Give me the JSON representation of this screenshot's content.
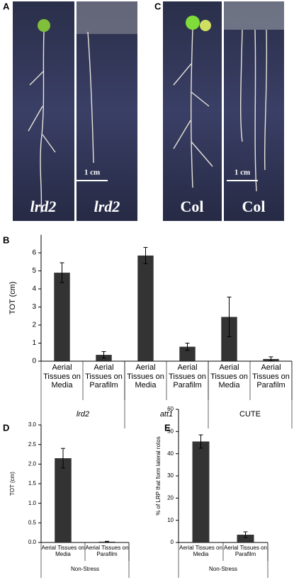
{
  "panels": [
    "A",
    "C"
  ],
  "photos": [
    {
      "label": "lrd2",
      "scale": "1 cm"
    },
    {
      "label": "Col",
      "scale": "1 cm"
    }
  ],
  "chart_data": [
    {
      "type": "bar",
      "panel": "B",
      "y_label": "TOT (cm)",
      "color": "#333333",
      "categories": [
        "Aerial Tissues on Media",
        "Aerial Tissues on Parafilm",
        "Aerial Tissues on Media",
        "Aerial Tissues on Parafilm",
        "Aerial Tissues on Media",
        "Aerial Tissues on Parafilm"
      ],
      "values": [
        4.9,
        0.35,
        5.85,
        0.8,
        2.45,
        0.12
      ],
      "errors": [
        0.55,
        0.18,
        0.45,
        0.2,
        1.1,
        0.12
      ],
      "groups": [
        {
          "label": "lrd2",
          "span": 2,
          "italic": true
        },
        {
          "label": "att1",
          "span": 2,
          "italic": true
        },
        {
          "label": "CUTE",
          "span": 2,
          "italic": false
        }
      ],
      "ylim": [
        0,
        7
      ],
      "yticks": [
        0,
        1,
        2,
        3,
        4,
        5,
        6
      ]
    },
    {
      "type": "bar",
      "panel": "D",
      "y_label": "TOT (cm)",
      "color": "#333333",
      "categories": [
        "Aerial Tissues on Media",
        "Aerial Tissues on Parafilm"
      ],
      "values": [
        2.15,
        0.02
      ],
      "errors": [
        0.25,
        0.01
      ],
      "groups": [
        {
          "label": "Non-Stress",
          "span": 2,
          "italic": false
        }
      ],
      "ylim": [
        0,
        3
      ],
      "yticks": [
        {
          "value": 0,
          "label": "0.0"
        },
        {
          "value": 0.5,
          "label": "0.5"
        },
        {
          "value": 1,
          "label": "1.0"
        },
        {
          "value": 1.5,
          "label": "1.5"
        },
        {
          "value": 2,
          "label": "2.0"
        },
        {
          "value": 2.5,
          "label": "2.5"
        },
        {
          "value": 3,
          "label": "3.0"
        }
      ]
    },
    {
      "type": "bar",
      "panel": "E",
      "y_label": "% of LRP that form lateral rotos",
      "color": "#333333",
      "categories": [
        "Aerial Tissues on Media",
        "Aerial Tissues on Parafilm"
      ],
      "values": [
        45.5,
        3.5
      ],
      "errors": [
        3,
        1.3
      ],
      "groups": [
        {
          "label": "Non-Stress",
          "span": 2,
          "italic": false
        }
      ],
      "ylim": [
        0,
        60
      ],
      "yticks": [
        0,
        10,
        20,
        30,
        40,
        50,
        60
      ]
    }
  ]
}
